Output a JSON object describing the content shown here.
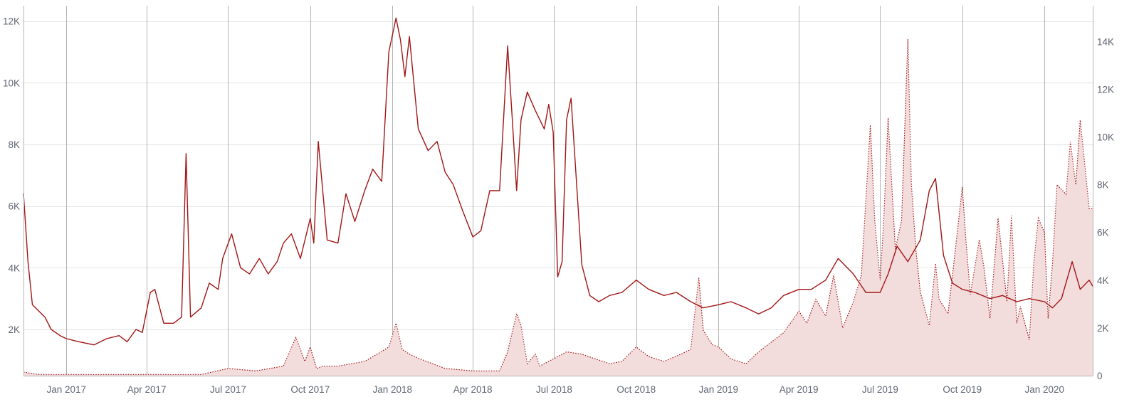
{
  "chart_data": {
    "type": "line",
    "title": "",
    "xlabel": "",
    "ylabel": "",
    "grid": true,
    "legend": "none",
    "x_ticks": [
      "Jan 2017",
      "Apr 2017",
      "Jul 2017",
      "Oct 2017",
      "Jan 2018",
      "Apr 2018",
      "Jul 2018",
      "Oct 2018",
      "Jan 2019",
      "Apr 2019",
      "Jul 2019",
      "Oct 2019",
      "Jan 2020"
    ],
    "x_tick_dates": [
      "2017-01-01",
      "2017-04-01",
      "2017-07-01",
      "2017-10-01",
      "2018-01-01",
      "2018-04-01",
      "2018-07-01",
      "2018-10-01",
      "2019-01-01",
      "2019-04-01",
      "2019-07-01",
      "2019-10-01",
      "2020-01-01"
    ],
    "x_range": [
      "2016-11-14",
      "2020-02-24"
    ],
    "y_left": {
      "ticks": [
        "2K",
        "4K",
        "6K",
        "8K",
        "10K",
        "12K"
      ],
      "values": [
        2000,
        4000,
        6000,
        8000,
        10000,
        12000
      ],
      "range": [
        500,
        12500
      ]
    },
    "y_right": {
      "ticks": [
        "0",
        "2K",
        "4K",
        "6K",
        "8K",
        "10K",
        "12K",
        "14K"
      ],
      "values": [
        0,
        2000,
        4000,
        6000,
        8000,
        10000,
        12000,
        14000
      ],
      "range": [
        0,
        15500
      ]
    },
    "colors": {
      "line": "#a11616",
      "area_fill": "#f3dcdc",
      "area_stroke": "#a11616"
    },
    "series": [
      {
        "axis": "left",
        "style": "solid",
        "x": [
          "2016-11-14",
          "2016-11-19",
          "2016-11-24",
          "2016-12-01",
          "2016-12-08",
          "2016-12-15",
          "2016-12-25",
          "2017-01-01",
          "2017-01-15",
          "2017-02-01",
          "2017-02-15",
          "2017-03-01",
          "2017-03-10",
          "2017-03-20",
          "2017-03-27",
          "2017-04-05",
          "2017-04-10",
          "2017-04-20",
          "2017-05-01",
          "2017-05-10",
          "2017-05-15",
          "2017-05-20",
          "2017-06-01",
          "2017-06-10",
          "2017-06-20",
          "2017-06-25",
          "2017-07-05",
          "2017-07-15",
          "2017-07-25",
          "2017-08-05",
          "2017-08-15",
          "2017-08-25",
          "2017-09-01",
          "2017-09-10",
          "2017-09-20",
          "2017-10-01",
          "2017-10-05",
          "2017-10-10",
          "2017-10-20",
          "2017-11-01",
          "2017-11-10",
          "2017-11-20",
          "2017-12-01",
          "2017-12-10",
          "2017-12-20",
          "2017-12-28",
          "2018-01-05",
          "2018-01-10",
          "2018-01-15",
          "2018-01-20",
          "2018-01-30",
          "2018-02-10",
          "2018-02-20",
          "2018-03-01",
          "2018-03-10",
          "2018-03-20",
          "2018-04-01",
          "2018-04-10",
          "2018-04-20",
          "2018-05-01",
          "2018-05-10",
          "2018-05-15",
          "2018-05-20",
          "2018-05-25",
          "2018-06-01",
          "2018-06-10",
          "2018-06-20",
          "2018-06-25",
          "2018-06-30",
          "2018-07-05",
          "2018-07-10",
          "2018-07-15",
          "2018-07-20",
          "2018-08-01",
          "2018-08-10",
          "2018-08-20",
          "2018-09-01",
          "2018-09-15",
          "2018-10-01",
          "2018-10-15",
          "2018-11-01",
          "2018-11-15",
          "2018-12-01",
          "2018-12-15",
          "2019-01-01",
          "2019-01-15",
          "2019-02-01",
          "2019-02-15",
          "2019-03-01",
          "2019-03-15",
          "2019-04-01",
          "2019-04-15",
          "2019-05-01",
          "2019-05-15",
          "2019-06-01",
          "2019-06-15",
          "2019-07-01",
          "2019-07-10",
          "2019-07-20",
          "2019-08-01",
          "2019-08-15",
          "2019-08-25",
          "2019-09-01",
          "2019-09-10",
          "2019-09-20",
          "2019-10-01",
          "2019-10-15",
          "2019-11-01",
          "2019-11-15",
          "2019-12-01",
          "2019-12-15",
          "2020-01-01",
          "2020-01-10",
          "2020-01-20",
          "2020-02-01",
          "2020-02-10",
          "2020-02-20",
          "2020-02-24"
        ],
        "y": [
          6400,
          4200,
          2800,
          2600,
          2400,
          2000,
          1800,
          1700,
          1600,
          1500,
          1700,
          1800,
          1600,
          2000,
          1900,
          3200,
          3300,
          2200,
          2200,
          2400,
          7700,
          2400,
          2700,
          3500,
          3300,
          4300,
          5100,
          4000,
          3800,
          4300,
          3800,
          4200,
          4800,
          5100,
          4300,
          5600,
          4800,
          8100,
          4900,
          4800,
          6400,
          5500,
          6500,
          7200,
          6800,
          11000,
          12100,
          11400,
          10200,
          11500,
          8500,
          7800,
          8100,
          7100,
          6700,
          5900,
          5000,
          5200,
          6500,
          6500,
          11200,
          8900,
          6500,
          8800,
          9700,
          9100,
          8500,
          9300,
          8400,
          3700,
          4200,
          8800,
          9500,
          4100,
          3100,
          2900,
          3100,
          3200,
          3600,
          3300,
          3100,
          3200,
          2900,
          2700,
          2800,
          2900,
          2700,
          2500,
          2700,
          3100,
          3300,
          3300,
          3600,
          4300,
          3800,
          3200,
          3200,
          3800,
          4700,
          4200,
          4900,
          6500,
          6900,
          4400,
          3500,
          3300,
          3200,
          3000,
          3100,
          2900,
          3000,
          2900,
          2700,
          3000,
          4200,
          3300,
          3600,
          3400
        ]
      },
      {
        "axis": "right",
        "style": "area-dotted",
        "x": [
          "2016-11-14",
          "2016-12-01",
          "2017-01-01",
          "2017-02-01",
          "2017-03-01",
          "2017-04-01",
          "2017-05-01",
          "2017-06-01",
          "2017-07-01",
          "2017-08-01",
          "2017-09-01",
          "2017-09-15",
          "2017-09-25",
          "2017-10-01",
          "2017-10-08",
          "2017-10-15",
          "2017-11-01",
          "2017-12-01",
          "2017-12-15",
          "2017-12-28",
          "2018-01-05",
          "2018-01-12",
          "2018-01-20",
          "2018-02-01",
          "2018-03-01",
          "2018-04-01",
          "2018-05-01",
          "2018-05-10",
          "2018-05-20",
          "2018-05-25",
          "2018-06-01",
          "2018-06-10",
          "2018-06-15",
          "2018-06-25",
          "2018-07-05",
          "2018-07-15",
          "2018-08-01",
          "2018-09-01",
          "2018-09-15",
          "2018-10-01",
          "2018-10-15",
          "2018-11-01",
          "2018-11-20",
          "2018-12-01",
          "2018-12-10",
          "2018-12-15",
          "2018-12-25",
          "2019-01-01",
          "2019-01-15",
          "2019-02-01",
          "2019-02-15",
          "2019-03-01",
          "2019-03-15",
          "2019-04-01",
          "2019-04-10",
          "2019-04-20",
          "2019-05-01",
          "2019-05-10",
          "2019-05-20",
          "2019-06-01",
          "2019-06-10",
          "2019-06-20",
          "2019-06-25",
          "2019-07-01",
          "2019-07-05",
          "2019-07-10",
          "2019-07-18",
          "2019-07-25",
          "2019-08-01",
          "2019-08-05",
          "2019-08-10",
          "2019-08-15",
          "2019-08-25",
          "2019-09-01",
          "2019-09-05",
          "2019-09-15",
          "2019-09-20",
          "2019-10-01",
          "2019-10-05",
          "2019-10-10",
          "2019-10-20",
          "2019-10-25",
          "2019-11-01",
          "2019-11-10",
          "2019-11-20",
          "2019-11-25",
          "2019-12-01",
          "2019-12-05",
          "2019-12-15",
          "2019-12-20",
          "2019-12-25",
          "2020-01-01",
          "2020-01-05",
          "2020-01-10",
          "2020-01-15",
          "2020-01-25",
          "2020-01-30",
          "2020-02-05",
          "2020-02-10",
          "2020-02-15",
          "2020-02-20",
          "2020-02-24"
        ],
        "y": [
          150,
          50,
          50,
          50,
          50,
          50,
          50,
          50,
          300,
          200,
          400,
          1600,
          600,
          1200,
          300,
          400,
          400,
          600,
          900,
          1200,
          2200,
          1100,
          900,
          700,
          300,
          200,
          200,
          1000,
          2600,
          2100,
          500,
          900,
          400,
          600,
          800,
          1000,
          900,
          500,
          600,
          1200,
          800,
          600,
          900,
          1100,
          4100,
          1900,
          1300,
          1200,
          700,
          500,
          1000,
          1400,
          1800,
          2700,
          2200,
          3200,
          2500,
          4200,
          2000,
          3100,
          4200,
          10500,
          6500,
          4000,
          6500,
          10800,
          5300,
          6500,
          14100,
          8000,
          5300,
          3500,
          2100,
          4700,
          3200,
          2600,
          4200,
          7900,
          5700,
          3400,
          5700,
          4600,
          2400,
          6600,
          3100,
          6700,
          2200,
          2900,
          1500,
          4700,
          6600,
          6000,
          2400,
          4700,
          8000,
          7600,
          9800,
          8000,
          10700,
          8900,
          7000,
          7000
        ]
      }
    ]
  }
}
